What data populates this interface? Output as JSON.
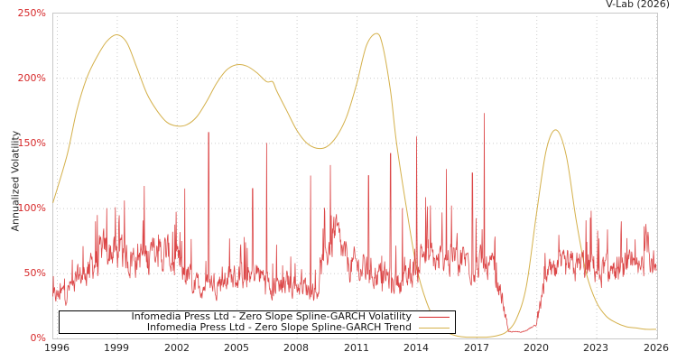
{
  "chart_data": {
    "type": "line",
    "title": "",
    "credit": "V-Lab (2026)",
    "xlabel": "",
    "ylabel": "Annualized Volatility",
    "xlim": [
      1996,
      2026
    ],
    "ylim": [
      0,
      250
    ],
    "x_ticks": [
      "1996",
      "1999",
      "2002",
      "2005",
      "2008",
      "2011",
      "2014",
      "2017",
      "2020",
      "2023",
      "2026"
    ],
    "y_ticks": [
      "0%",
      "50%",
      "100%",
      "150%",
      "200%",
      "250%"
    ],
    "grid": true,
    "legend_position": "lower-left",
    "colors": {
      "volatility": "#d62728",
      "trend": "#d4b04a",
      "grid": "#cccccc",
      "axis": "#c0c0c0"
    },
    "series": [
      {
        "name": "Infomedia Press Ltd - Zero Slope Spline-GARCH Volatility",
        "color": "#d62728",
        "baseline_anchors": {
          "x": [
            1995.8,
            1996.5,
            1997.5,
            1998.5,
            1999.5,
            2000.5,
            2001.5,
            2002.3,
            2003.0,
            2004.0,
            2005.0,
            2006.0,
            2007.0,
            2008.0,
            2009.0,
            2009.8,
            2010.5,
            2011.5,
            2012.5,
            2013.5,
            2014.3,
            2015.0,
            2016.0,
            2017.0,
            2017.8,
            2018.3,
            2018.6,
            2019.3,
            2020.0,
            2020.5,
            2021.5,
            2022.5,
            2023.5,
            2024.5,
            2025.2,
            2025.6,
            2026.0
          ],
          "y": [
            30,
            35,
            50,
            65,
            60,
            60,
            62,
            50,
            38,
            42,
            45,
            48,
            40,
            40,
            35,
            80,
            55,
            50,
            45,
            40,
            65,
            55,
            60,
            55,
            50,
            30,
            5,
            5,
            10,
            45,
            50,
            55,
            50,
            50,
            48,
            75,
            45
          ]
        },
        "spikes": [
          {
            "x": 1998.5,
            "y": 100
          },
          {
            "x": 2002.4,
            "y": 115
          },
          {
            "x": 2003.6,
            "y": 158
          },
          {
            "x": 2005.8,
            "y": 115
          },
          {
            "x": 2006.5,
            "y": 150
          },
          {
            "x": 2008.7,
            "y": 125
          },
          {
            "x": 2009.7,
            "y": 133
          },
          {
            "x": 2011.6,
            "y": 125
          },
          {
            "x": 2012.7,
            "y": 142
          },
          {
            "x": 2013.3,
            "y": 100
          },
          {
            "x": 2014.0,
            "y": 155
          },
          {
            "x": 2015.5,
            "y": 130
          },
          {
            "x": 2016.8,
            "y": 127
          },
          {
            "x": 2017.4,
            "y": 173
          },
          {
            "x": 2025.4,
            "y": 86
          }
        ]
      },
      {
        "name": "Infomedia Press Ltd - Zero Slope Spline-GARCH Trend",
        "color": "#d4b04a",
        "x": [
          1995.8,
          1996.5,
          1997.0,
          1997.5,
          1998.0,
          1998.5,
          1999.0,
          1999.5,
          2000.0,
          2000.5,
          2001.0,
          2001.5,
          2002.0,
          2002.5,
          2003.0,
          2003.5,
          2004.0,
          2004.5,
          2005.0,
          2005.5,
          2006.0,
          2006.5,
          2006.8,
          2007.0,
          2007.5,
          2008.0,
          2008.5,
          2009.0,
          2009.5,
          2010.0,
          2010.5,
          2011.0,
          2011.5,
          2012.0,
          2012.3,
          2012.7,
          2013.0,
          2013.5,
          2014.0,
          2014.5,
          2015.0,
          2015.5,
          2016.0,
          2016.5,
          2017.0,
          2017.5,
          2018.0,
          2018.5,
          2019.0,
          2019.5,
          2020.0,
          2020.5,
          2021.0,
          2021.5,
          2022.0,
          2022.5,
          2023.0,
          2023.5,
          2024.0,
          2024.5,
          2025.0,
          2025.5,
          2026.0
        ],
        "y": [
          104,
          140,
          175,
          200,
          216,
          228,
          233,
          227,
          208,
          188,
          175,
          166,
          163,
          164,
          170,
          182,
          196,
          206,
          210,
          209,
          204,
          197,
          197,
          190,
          175,
          160,
          150,
          146,
          147,
          155,
          170,
          195,
          225,
          234,
          225,
          190,
          150,
          100,
          55,
          28,
          12,
          5,
          2,
          1,
          1,
          1,
          2,
          5,
          15,
          40,
          95,
          145,
          160,
          140,
          90,
          50,
          28,
          17,
          12,
          9,
          8,
          7,
          7
        ]
      }
    ]
  }
}
